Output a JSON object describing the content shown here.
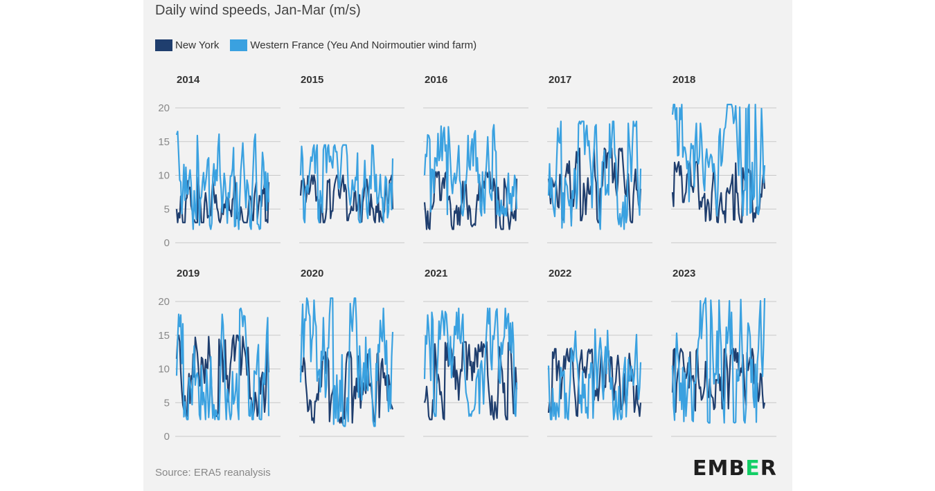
{
  "title": "Daily wind speeds, Jan-Mar (m/s)",
  "source": "Source: ERA5 reanalysis",
  "logo": {
    "prefix": "EMB",
    "mid": "E",
    "suffix": "R"
  },
  "colors": {
    "new_york": "#1f3e6e",
    "western_france": "#3aa1e0",
    "grid": "#c8c8c8",
    "logo_accent": "#13ce66"
  },
  "chart_data": {
    "type": "line",
    "title": "Daily wind speeds, Jan-Mar (m/s)",
    "ylim": [
      0,
      20
    ],
    "yticks": [
      0,
      5,
      10,
      15,
      20
    ],
    "grid": true,
    "legend": "top-left",
    "series_names": [
      "New York",
      "Western France (Yeu And Noirmoutier wind farm)"
    ],
    "panels": [
      {
        "year": "2014",
        "ny_range": [
          3,
          10
        ],
        "wf_range": [
          2,
          16.5
        ],
        "wf_start": 16,
        "ny_start": 5,
        "wf_end": 6,
        "ny_end": 9
      },
      {
        "year": "2015",
        "ny_range": [
          3,
          10
        ],
        "wf_range": [
          3,
          14.5
        ],
        "wf_start": 10,
        "ny_start": 7,
        "wf_end": 12.5,
        "ny_end": 5
      },
      {
        "year": "2016",
        "ny_range": [
          2,
          10.5
        ],
        "wf_range": [
          4,
          17.5
        ],
        "wf_start": 10,
        "ny_start": 6,
        "wf_end": 5,
        "ny_end": 9.5
      },
      {
        "year": "2017",
        "ny_range": [
          3,
          14
        ],
        "wf_range": [
          2,
          18
        ],
        "wf_start": 7,
        "ny_start": 9.5,
        "wf_end": 11,
        "ny_end": 8
      },
      {
        "year": "2018",
        "ny_range": [
          3,
          12
        ],
        "wf_range": [
          4,
          20.5
        ],
        "wf_start": 19,
        "ny_start": 7.5,
        "wf_end": 11.5,
        "ny_end": 8
      },
      {
        "year": "2019",
        "ny_range": [
          3,
          15
        ],
        "wf_range": [
          2.5,
          19
        ],
        "wf_start": 9,
        "ny_start": 11.5,
        "wf_end": 3,
        "ny_end": 9.5
      },
      {
        "year": "2020",
        "ny_range": [
          2,
          12.5
        ],
        "wf_range": [
          1.5,
          20.5
        ],
        "wf_start": 8,
        "ny_start": 9,
        "wf_end": 15.5,
        "ny_end": 4
      },
      {
        "year": "2021",
        "ny_range": [
          2.5,
          14
        ],
        "wf_range": [
          3,
          19
        ],
        "wf_start": 8.5,
        "ny_start": 5,
        "wf_end": 8,
        "ny_end": 7
      },
      {
        "year": "2022",
        "ny_range": [
          3,
          13
        ],
        "wf_range": [
          2.5,
          16
        ],
        "wf_start": 10.5,
        "ny_start": 3.5,
        "wf_end": 11,
        "ny_end": 5
      },
      {
        "year": "2023",
        "ny_range": [
          3.5,
          13
        ],
        "wf_range": [
          2,
          20.5
        ],
        "wf_start": 10.5,
        "ny_start": 6.5,
        "wf_end": 20.5,
        "ny_end": 5
      }
    ]
  }
}
